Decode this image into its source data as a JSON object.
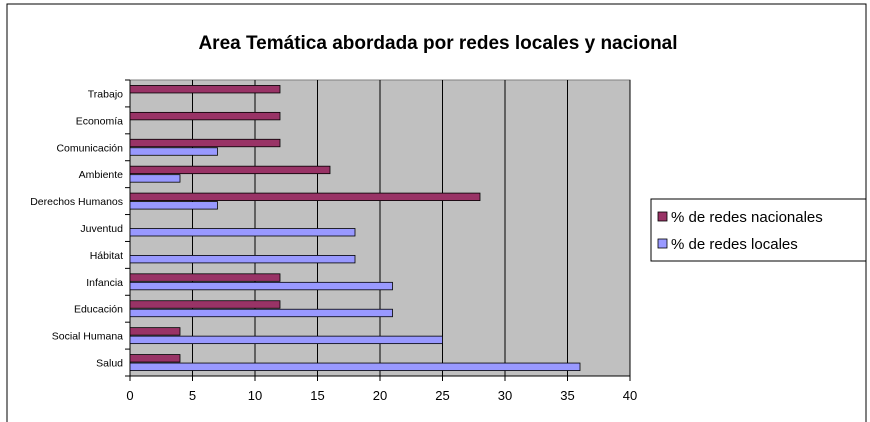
{
  "chart_data": {
    "type": "bar",
    "orientation": "horizontal",
    "title": "Area Temática abordada por redes locales y nacional",
    "xlabel": "",
    "ylabel": "",
    "xlim": [
      0,
      40
    ],
    "x_ticks": [
      0,
      5,
      10,
      15,
      20,
      25,
      30,
      35,
      40
    ],
    "grid": "vertical",
    "legend_position": "right",
    "categories": [
      "Trabajo",
      "Economía",
      "Comunicación",
      "Ambiente",
      "Derechos Humanos",
      "Juventud",
      "Hábitat",
      "Infancia",
      "Educación",
      "Social Humana",
      "Salud"
    ],
    "series": [
      {
        "name": "% de redes nacionales",
        "color": "#993366",
        "values": [
          12,
          12,
          12,
          16,
          28,
          0,
          0,
          12,
          12,
          4,
          4
        ]
      },
      {
        "name": "% de redes locales",
        "color": "#9999FF",
        "values": [
          0,
          0,
          7,
          4,
          7,
          18,
          18,
          21,
          21,
          25,
          36
        ]
      }
    ],
    "plot_background": "#C0C0C0"
  }
}
